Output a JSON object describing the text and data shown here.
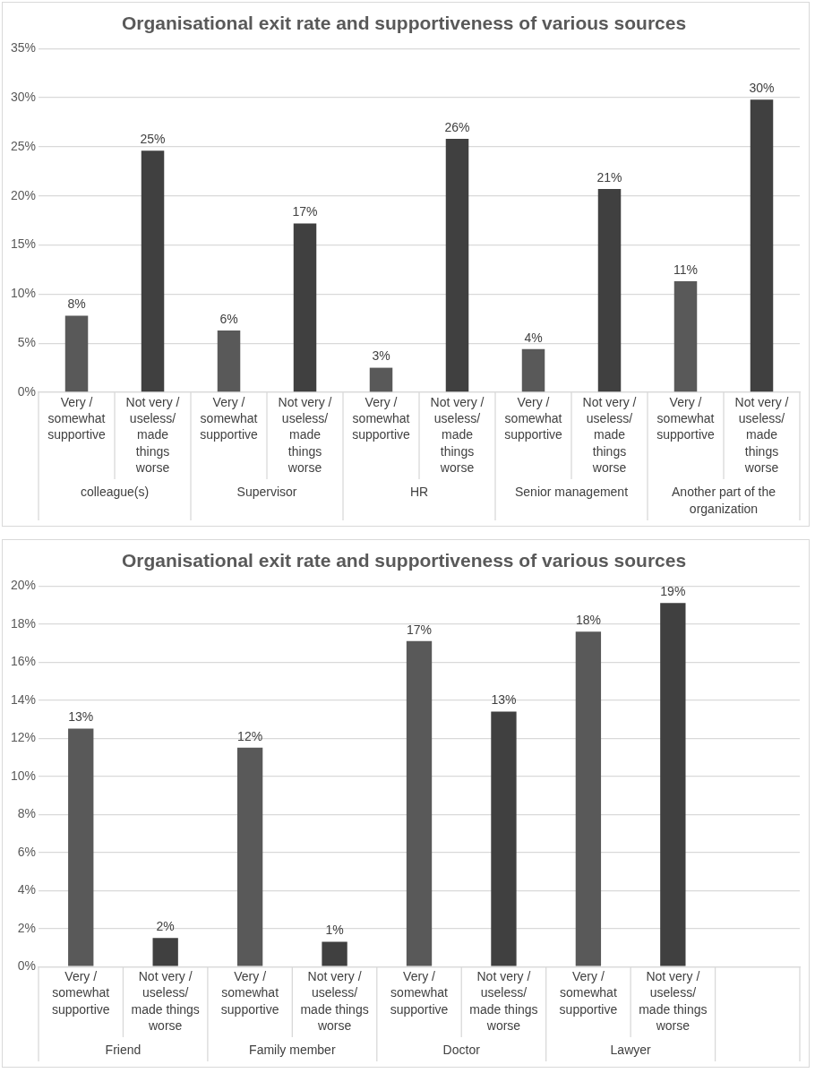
{
  "chart_data": [
    {
      "type": "bar",
      "title": "Organisational exit rate and supportiveness of various sources",
      "categories": [
        "Very / somewhat supportive",
        "Not very / useless/ made things worse",
        "Very / somewhat supportive",
        "Not very / useless/ made things worse",
        "Very / somewhat supportive",
        "Not very / useless/ made things worse",
        "Very / somewhat supportive",
        "Not very / useless/ made things worse",
        "Very / somewhat supportive",
        "Not very / useless/ made things worse"
      ],
      "values": [
        7.8,
        24.6,
        6.3,
        17.2,
        2.5,
        25.8,
        4.4,
        20.7,
        11.3,
        29.8
      ],
      "value_labels": [
        "8%",
        "25%",
        "6%",
        "17%",
        "3%",
        "26%",
        "4%",
        "21%",
        "11%",
        "30%"
      ],
      "colors": [
        "#595959",
        "#404040",
        "#595959",
        "#404040",
        "#595959",
        "#404040",
        "#595959",
        "#404040",
        "#595959",
        "#404040"
      ],
      "annotations": [
        "colleague(s)",
        "Supervisor",
        "HR",
        "Senior management",
        "Another part of the organization"
      ],
      "ylim": [
        0,
        35
      ],
      "yticks": [
        {
          "value": 0,
          "label": "0%"
        },
        {
          "value": 5,
          "label": "5%"
        },
        {
          "value": 10,
          "label": "10%"
        },
        {
          "value": 15,
          "label": "15%"
        },
        {
          "value": 20,
          "label": "20%"
        },
        {
          "value": 25,
          "label": "25%"
        },
        {
          "value": 30,
          "label": "30%"
        },
        {
          "value": 35,
          "label": "35%"
        }
      ],
      "grid": "y"
    },
    {
      "type": "bar",
      "title": "Organisational exit rate and supportiveness of various sources",
      "categories": [
        "Very / somewhat supportive",
        "Not very / useless/ made things worse",
        "Very / somewhat supportive",
        "Not very / useless/ made things worse",
        "Very / somewhat supportive",
        "Not very / useless/ made things worse",
        "Very / somewhat supportive",
        "Not very / useless/ made things worse",
        null
      ],
      "values": [
        12.5,
        1.5,
        11.5,
        1.3,
        17.1,
        13.4,
        17.6,
        19.1,
        null
      ],
      "value_labels": [
        "13%",
        "2%",
        "12%",
        "1%",
        "17%",
        "13%",
        "18%",
        "19%",
        null
      ],
      "colors": [
        "#595959",
        "#404040",
        "#595959",
        "#404040",
        "#595959",
        "#404040",
        "#595959",
        "#404040",
        "#595959"
      ],
      "annotations": [
        "Friend",
        "Family member",
        "Doctor",
        "Lawyer"
      ],
      "ylim": [
        0,
        20
      ],
      "yticks": [
        {
          "value": 0,
          "label": "0%"
        },
        {
          "value": 2,
          "label": "2%"
        },
        {
          "value": 4,
          "label": "4%"
        },
        {
          "value": 6,
          "label": "6%"
        },
        {
          "value": 8,
          "label": "8%"
        },
        {
          "value": 10,
          "label": "10%"
        },
        {
          "value": 12,
          "label": "12%"
        },
        {
          "value": 14,
          "label": "14%"
        },
        {
          "value": 16,
          "label": "16%"
        },
        {
          "value": 18,
          "label": "18%"
        },
        {
          "value": 20,
          "label": "20%"
        }
      ],
      "grid": "y"
    }
  ]
}
